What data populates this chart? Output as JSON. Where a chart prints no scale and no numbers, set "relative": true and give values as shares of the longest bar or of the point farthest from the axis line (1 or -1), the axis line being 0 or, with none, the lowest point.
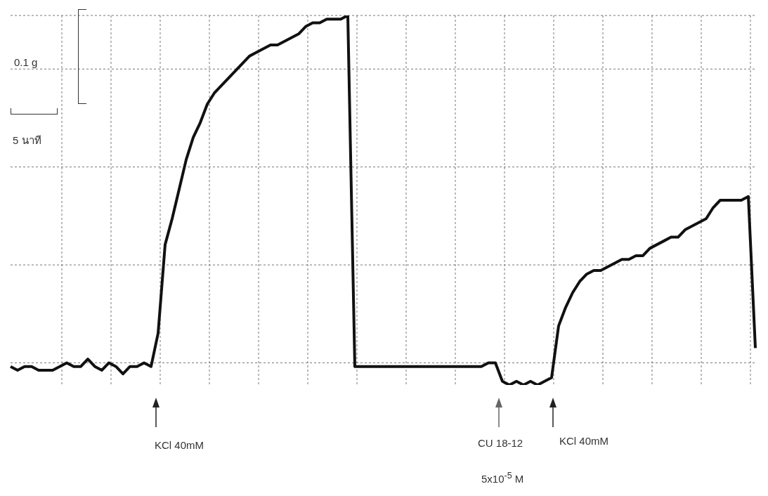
{
  "chart_data": {
    "type": "line",
    "relative": true,
    "grid": true,
    "legend": false,
    "marker": "none",
    "line_style": "solid",
    "categories": [
      null,
      null,
      null,
      null,
      null,
      null,
      null,
      null,
      null,
      null,
      null,
      null,
      null,
      null,
      null,
      null,
      null,
      null,
      null,
      null,
      null,
      null,
      null,
      null,
      null,
      null,
      null,
      null,
      null,
      null,
      null,
      null,
      null,
      null,
      null,
      null,
      null,
      null,
      null,
      null,
      null,
      null,
      null,
      null,
      null,
      null,
      null,
      null,
      null,
      null,
      null,
      null,
      null,
      null,
      null,
      null,
      null,
      null,
      null,
      null,
      null,
      null,
      null,
      null,
      null,
      null,
      null,
      null,
      null,
      null,
      null,
      null,
      null,
      null,
      null,
      null,
      null,
      null,
      null,
      null,
      null,
      null,
      null,
      null,
      null,
      null,
      null,
      null,
      null,
      null,
      null,
      null,
      null,
      null,
      null,
      null,
      null,
      null,
      null,
      null,
      null,
      null,
      null,
      null,
      null,
      null,
      null
    ],
    "series": [
      {
        "color": "#111111",
        "values": [
          0.05,
          0.04,
          0.05,
          0.05,
          0.04,
          0.04,
          0.04,
          0.05,
          0.06,
          0.05,
          0.05,
          0.07,
          0.05,
          0.04,
          0.06,
          0.05,
          0.03,
          0.05,
          0.05,
          0.06,
          0.05,
          0.14,
          0.38,
          0.45,
          0.53,
          0.61,
          0.67,
          0.71,
          0.76,
          0.79,
          0.81,
          0.83,
          0.85,
          0.87,
          0.89,
          0.9,
          0.91,
          0.92,
          0.92,
          0.93,
          0.94,
          0.95,
          0.97,
          0.98,
          0.98,
          0.99,
          0.99,
          0.99,
          1,
          0.05,
          0.05,
          0.05,
          0.05,
          0.05,
          0.05,
          0.05,
          0.05,
          0.05,
          0.05,
          0.05,
          0.05,
          0.05,
          0.05,
          0.05,
          0.05,
          0.05,
          0.05,
          0.05,
          0.06,
          0.06,
          0.01,
          0,
          0.01,
          0,
          0.01,
          0,
          0.01,
          0.02,
          0.16,
          0.21,
          0.25,
          0.28,
          0.3,
          0.31,
          0.31,
          0.32,
          0.33,
          0.34,
          0.34,
          0.35,
          0.35,
          0.37,
          0.38,
          0.39,
          0.4,
          0.4,
          0.42,
          0.43,
          0.44,
          0.45,
          0.48,
          0.5,
          0.5,
          0.5,
          0.5,
          0.51,
          0.1
        ]
      }
    ],
    "annotations": [
      "0.1 g",
      "5 นาที",
      "KCl 40mM",
      "CU 18-12",
      "5x10$^{-5}$ M",
      "KCl 40mM"
    ]
  }
}
